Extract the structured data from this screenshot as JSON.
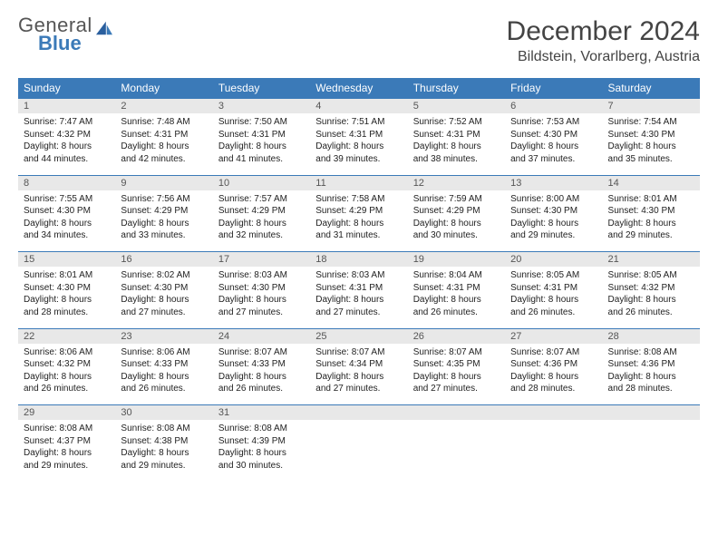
{
  "brand": {
    "word1": "General",
    "word2": "Blue"
  },
  "title": "December 2024",
  "location": "Bildstein, Vorarlberg, Austria",
  "colors": {
    "header_bg": "#3b7ab8",
    "header_text": "#ffffff",
    "daynum_bg": "#e8e8e8",
    "text": "#222222",
    "page_bg": "#ffffff"
  },
  "dayNames": [
    "Sunday",
    "Monday",
    "Tuesday",
    "Wednesday",
    "Thursday",
    "Friday",
    "Saturday"
  ],
  "weeks": [
    [
      {
        "n": "1",
        "sr": "Sunrise: 7:47 AM",
        "ss": "Sunset: 4:32 PM",
        "d1": "Daylight: 8 hours",
        "d2": "and 44 minutes."
      },
      {
        "n": "2",
        "sr": "Sunrise: 7:48 AM",
        "ss": "Sunset: 4:31 PM",
        "d1": "Daylight: 8 hours",
        "d2": "and 42 minutes."
      },
      {
        "n": "3",
        "sr": "Sunrise: 7:50 AM",
        "ss": "Sunset: 4:31 PM",
        "d1": "Daylight: 8 hours",
        "d2": "and 41 minutes."
      },
      {
        "n": "4",
        "sr": "Sunrise: 7:51 AM",
        "ss": "Sunset: 4:31 PM",
        "d1": "Daylight: 8 hours",
        "d2": "and 39 minutes."
      },
      {
        "n": "5",
        "sr": "Sunrise: 7:52 AM",
        "ss": "Sunset: 4:31 PM",
        "d1": "Daylight: 8 hours",
        "d2": "and 38 minutes."
      },
      {
        "n": "6",
        "sr": "Sunrise: 7:53 AM",
        "ss": "Sunset: 4:30 PM",
        "d1": "Daylight: 8 hours",
        "d2": "and 37 minutes."
      },
      {
        "n": "7",
        "sr": "Sunrise: 7:54 AM",
        "ss": "Sunset: 4:30 PM",
        "d1": "Daylight: 8 hours",
        "d2": "and 35 minutes."
      }
    ],
    [
      {
        "n": "8",
        "sr": "Sunrise: 7:55 AM",
        "ss": "Sunset: 4:30 PM",
        "d1": "Daylight: 8 hours",
        "d2": "and 34 minutes."
      },
      {
        "n": "9",
        "sr": "Sunrise: 7:56 AM",
        "ss": "Sunset: 4:29 PM",
        "d1": "Daylight: 8 hours",
        "d2": "and 33 minutes."
      },
      {
        "n": "10",
        "sr": "Sunrise: 7:57 AM",
        "ss": "Sunset: 4:29 PM",
        "d1": "Daylight: 8 hours",
        "d2": "and 32 minutes."
      },
      {
        "n": "11",
        "sr": "Sunrise: 7:58 AM",
        "ss": "Sunset: 4:29 PM",
        "d1": "Daylight: 8 hours",
        "d2": "and 31 minutes."
      },
      {
        "n": "12",
        "sr": "Sunrise: 7:59 AM",
        "ss": "Sunset: 4:29 PM",
        "d1": "Daylight: 8 hours",
        "d2": "and 30 minutes."
      },
      {
        "n": "13",
        "sr": "Sunrise: 8:00 AM",
        "ss": "Sunset: 4:30 PM",
        "d1": "Daylight: 8 hours",
        "d2": "and 29 minutes."
      },
      {
        "n": "14",
        "sr": "Sunrise: 8:01 AM",
        "ss": "Sunset: 4:30 PM",
        "d1": "Daylight: 8 hours",
        "d2": "and 29 minutes."
      }
    ],
    [
      {
        "n": "15",
        "sr": "Sunrise: 8:01 AM",
        "ss": "Sunset: 4:30 PM",
        "d1": "Daylight: 8 hours",
        "d2": "and 28 minutes."
      },
      {
        "n": "16",
        "sr": "Sunrise: 8:02 AM",
        "ss": "Sunset: 4:30 PM",
        "d1": "Daylight: 8 hours",
        "d2": "and 27 minutes."
      },
      {
        "n": "17",
        "sr": "Sunrise: 8:03 AM",
        "ss": "Sunset: 4:30 PM",
        "d1": "Daylight: 8 hours",
        "d2": "and 27 minutes."
      },
      {
        "n": "18",
        "sr": "Sunrise: 8:03 AM",
        "ss": "Sunset: 4:31 PM",
        "d1": "Daylight: 8 hours",
        "d2": "and 27 minutes."
      },
      {
        "n": "19",
        "sr": "Sunrise: 8:04 AM",
        "ss": "Sunset: 4:31 PM",
        "d1": "Daylight: 8 hours",
        "d2": "and 26 minutes."
      },
      {
        "n": "20",
        "sr": "Sunrise: 8:05 AM",
        "ss": "Sunset: 4:31 PM",
        "d1": "Daylight: 8 hours",
        "d2": "and 26 minutes."
      },
      {
        "n": "21",
        "sr": "Sunrise: 8:05 AM",
        "ss": "Sunset: 4:32 PM",
        "d1": "Daylight: 8 hours",
        "d2": "and 26 minutes."
      }
    ],
    [
      {
        "n": "22",
        "sr": "Sunrise: 8:06 AM",
        "ss": "Sunset: 4:32 PM",
        "d1": "Daylight: 8 hours",
        "d2": "and 26 minutes."
      },
      {
        "n": "23",
        "sr": "Sunrise: 8:06 AM",
        "ss": "Sunset: 4:33 PM",
        "d1": "Daylight: 8 hours",
        "d2": "and 26 minutes."
      },
      {
        "n": "24",
        "sr": "Sunrise: 8:07 AM",
        "ss": "Sunset: 4:33 PM",
        "d1": "Daylight: 8 hours",
        "d2": "and 26 minutes."
      },
      {
        "n": "25",
        "sr": "Sunrise: 8:07 AM",
        "ss": "Sunset: 4:34 PM",
        "d1": "Daylight: 8 hours",
        "d2": "and 27 minutes."
      },
      {
        "n": "26",
        "sr": "Sunrise: 8:07 AM",
        "ss": "Sunset: 4:35 PM",
        "d1": "Daylight: 8 hours",
        "d2": "and 27 minutes."
      },
      {
        "n": "27",
        "sr": "Sunrise: 8:07 AM",
        "ss": "Sunset: 4:36 PM",
        "d1": "Daylight: 8 hours",
        "d2": "and 28 minutes."
      },
      {
        "n": "28",
        "sr": "Sunrise: 8:08 AM",
        "ss": "Sunset: 4:36 PM",
        "d1": "Daylight: 8 hours",
        "d2": "and 28 minutes."
      }
    ],
    [
      {
        "n": "29",
        "sr": "Sunrise: 8:08 AM",
        "ss": "Sunset: 4:37 PM",
        "d1": "Daylight: 8 hours",
        "d2": "and 29 minutes."
      },
      {
        "n": "30",
        "sr": "Sunrise: 8:08 AM",
        "ss": "Sunset: 4:38 PM",
        "d1": "Daylight: 8 hours",
        "d2": "and 29 minutes."
      },
      {
        "n": "31",
        "sr": "Sunrise: 8:08 AM",
        "ss": "Sunset: 4:39 PM",
        "d1": "Daylight: 8 hours",
        "d2": "and 30 minutes."
      },
      null,
      null,
      null,
      null
    ]
  ]
}
